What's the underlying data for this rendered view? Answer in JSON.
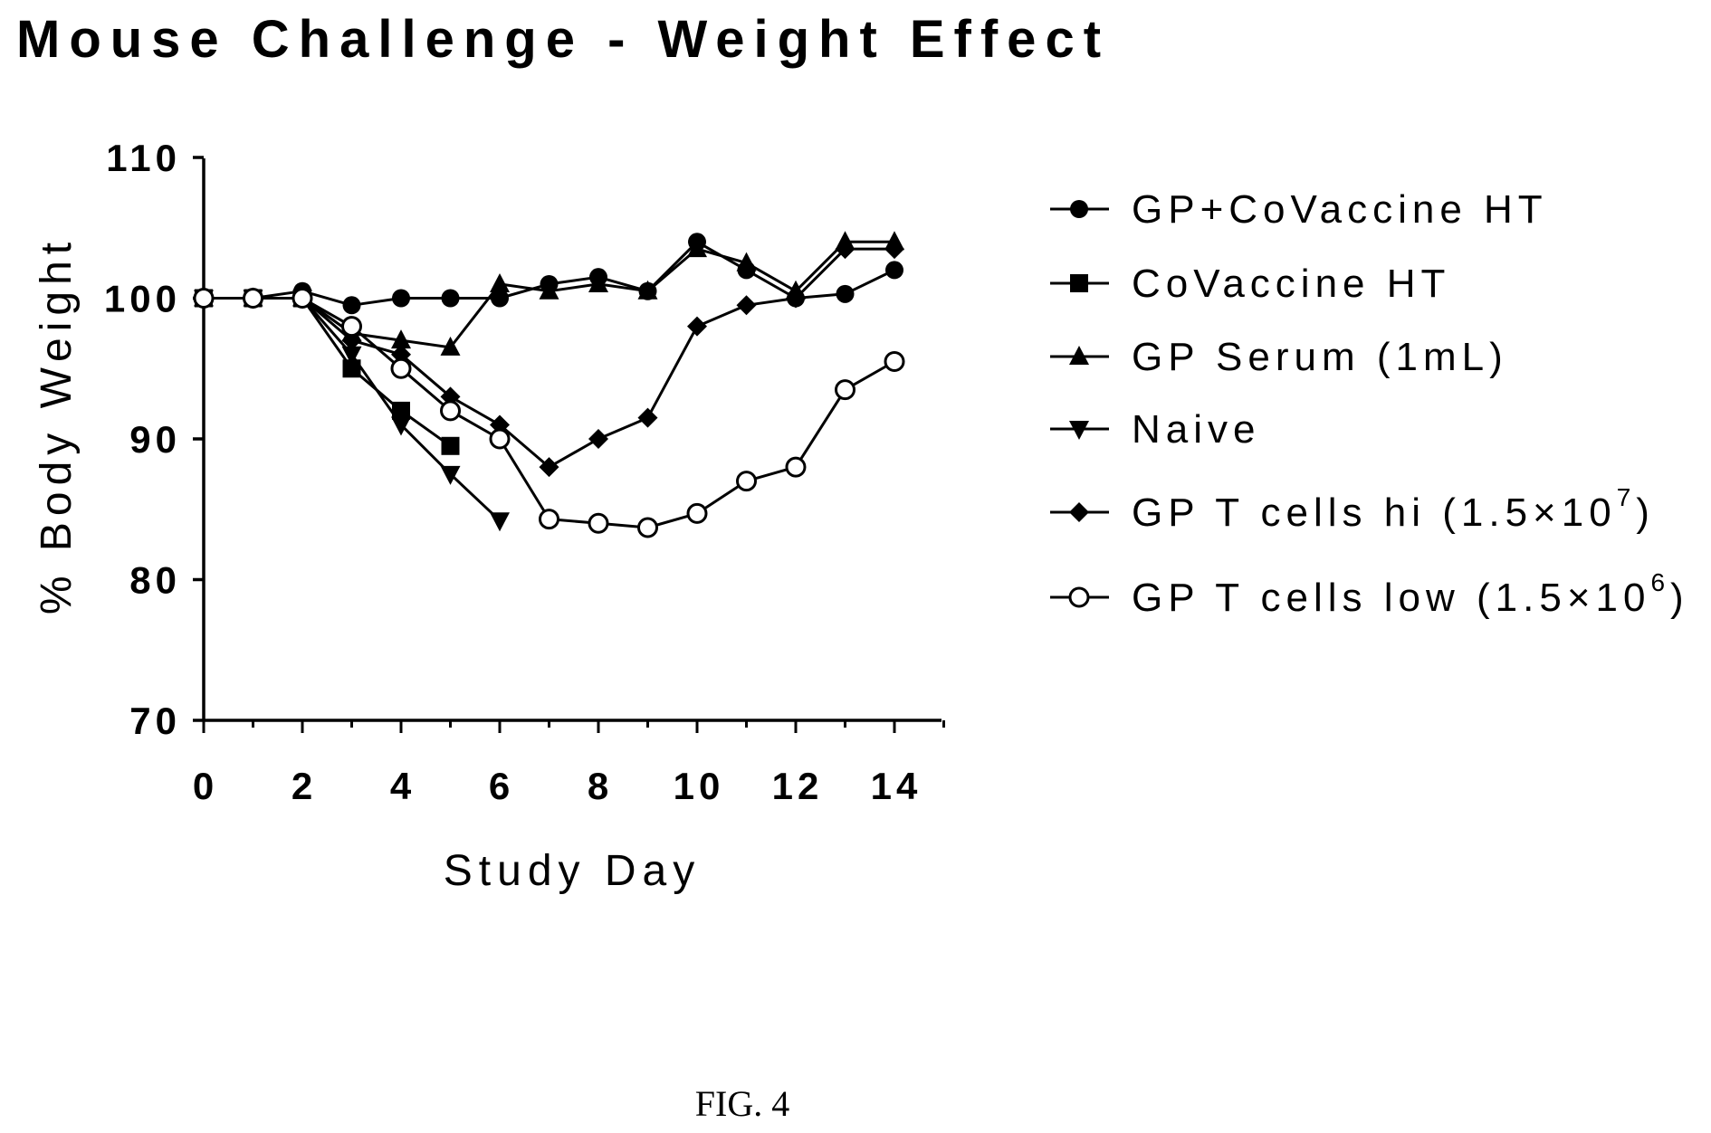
{
  "chart_data": {
    "type": "line",
    "title": "Mouse Challenge - Weight Effect",
    "xlabel": "Study Day",
    "ylabel": "% Body Weight",
    "xlim": [
      0,
      15
    ],
    "ylim": [
      70,
      110
    ],
    "x_ticks": [
      0,
      2,
      4,
      6,
      8,
      10,
      12,
      14
    ],
    "y_ticks": [
      70,
      80,
      90,
      100,
      110
    ],
    "x_tick_labels": [
      "0",
      "2",
      "4",
      "6",
      "8",
      "10",
      "12",
      "14"
    ],
    "y_tick_labels": [
      "70",
      "80",
      "90",
      "100",
      "110"
    ],
    "grid": false,
    "legend_position": "right",
    "series": [
      {
        "name": "GP+CoVaccine HT",
        "marker": "circle-filled",
        "x": [
          0,
          1,
          2,
          3,
          4,
          5,
          6,
          7,
          8,
          9,
          10,
          11,
          12,
          13,
          14
        ],
        "y": [
          100,
          100,
          100.5,
          99.5,
          100,
          100,
          100,
          101,
          101.5,
          100.5,
          104,
          102,
          100,
          100.3,
          102
        ]
      },
      {
        "name": "CoVaccine HT",
        "marker": "square-filled",
        "x": [
          0,
          1,
          2,
          3,
          4,
          5
        ],
        "y": [
          100,
          100,
          100,
          95,
          92,
          89.5
        ]
      },
      {
        "name": "GP Serum (1mL)",
        "marker": "triangle-up-filled",
        "x": [
          0,
          1,
          2,
          3,
          4,
          5,
          6,
          7,
          8,
          9,
          10,
          11,
          12,
          13,
          14
        ],
        "y": [
          100,
          100,
          100,
          97.5,
          97,
          96.5,
          101,
          100.5,
          101,
          100.5,
          103.5,
          102.5,
          100.5,
          104,
          104
        ]
      },
      {
        "name": "Naive",
        "marker": "triangle-down-filled",
        "x": [
          0,
          1,
          2,
          3,
          4,
          5,
          6
        ],
        "y": [
          100,
          100,
          100,
          96,
          91,
          87.5,
          84.2
        ]
      },
      {
        "name": "GP T cells hi (1.5×10",
        "name_sup": "7",
        "name_end": ")",
        "marker": "diamond-filled",
        "x": [
          0,
          1,
          2,
          3,
          4,
          5,
          6,
          7,
          8,
          9,
          10,
          11,
          12,
          13,
          14
        ],
        "y": [
          100,
          100,
          100,
          97,
          96,
          93,
          91,
          88,
          90,
          91.5,
          98,
          99.5,
          100,
          103.5,
          103.5
        ]
      },
      {
        "name": "GP T cells low (1.5×10",
        "name_sup": "6",
        "name_end": ")",
        "marker": "circle-open",
        "x": [
          0,
          1,
          2,
          3,
          4,
          5,
          6,
          7,
          8,
          9,
          10,
          11,
          12,
          13,
          14
        ],
        "y": [
          100,
          100,
          100,
          98,
          95,
          92,
          90,
          84.3,
          84,
          83.7,
          84.7,
          87,
          88,
          93.5,
          95.5
        ]
      }
    ]
  },
  "caption": "FIG. 4"
}
